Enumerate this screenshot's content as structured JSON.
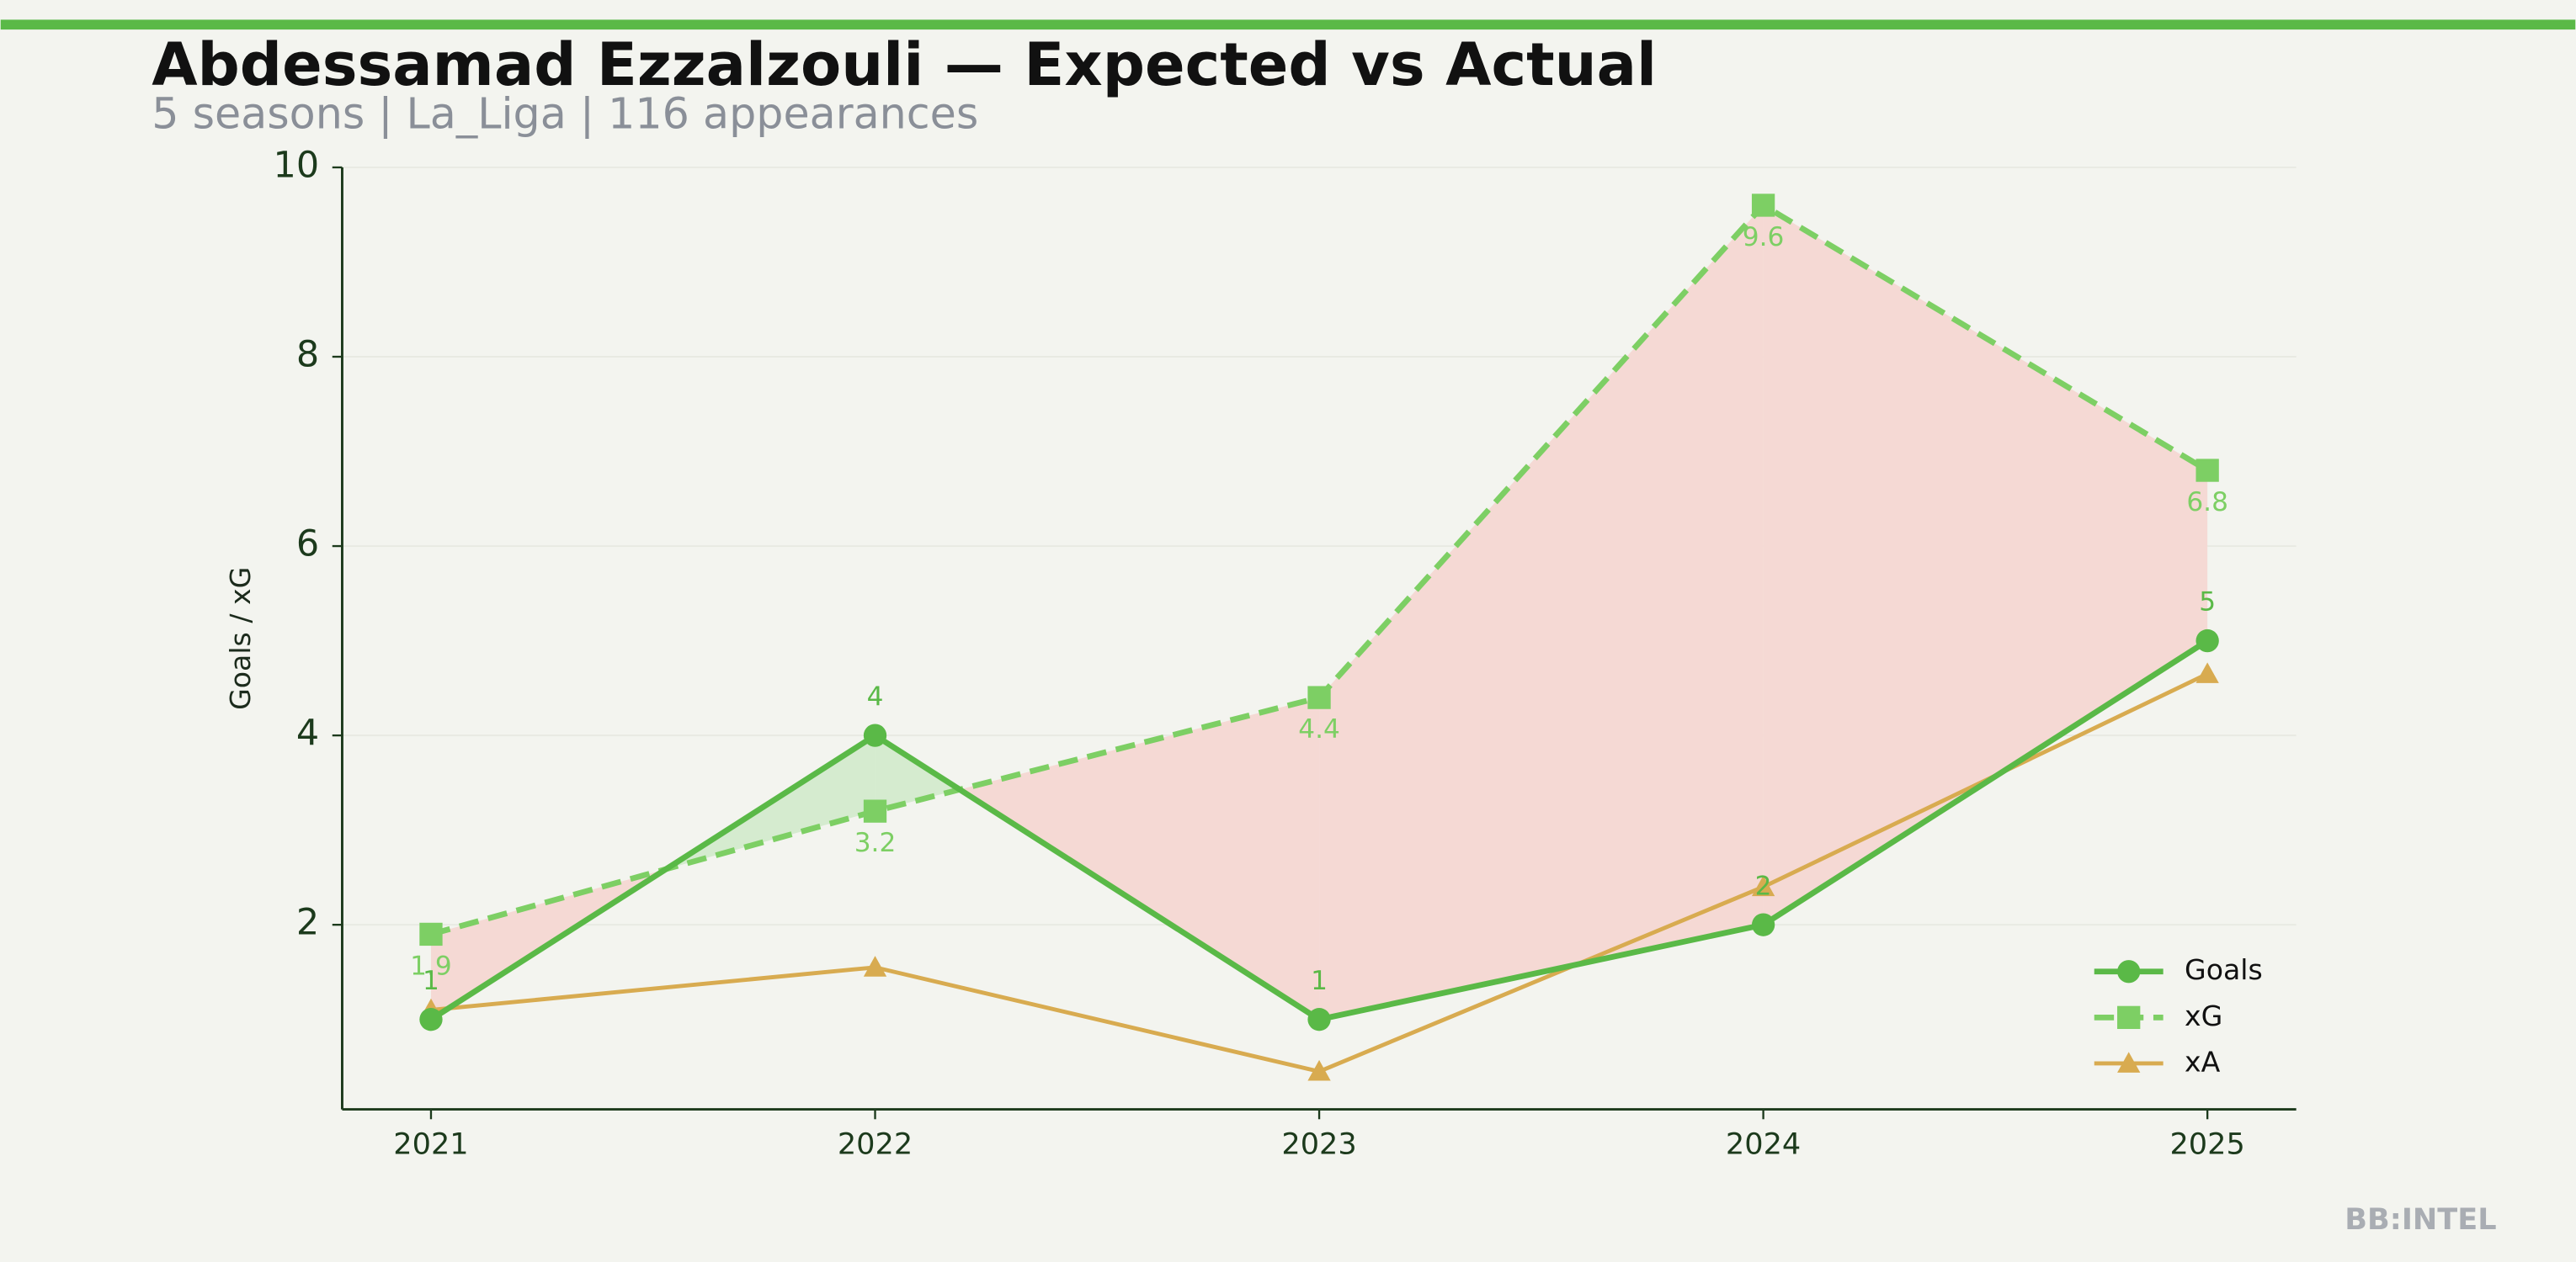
{
  "chart_data": {
    "type": "line",
    "title": "Abdessamad Ezzalzouli — Expected vs Actual",
    "subtitle": "5 seasons | La_Liga | 116 appearances",
    "y_label": "Goals / xG",
    "watermark": "BB:INTEL",
    "x": [
      2021,
      2022,
      2023,
      2024,
      2025
    ],
    "xlim": [
      2020.8,
      2025.2
    ],
    "xticks": [
      2021,
      2022,
      2023,
      2024,
      2025
    ],
    "ylim": [
      0.05,
      10
    ],
    "yticks": [
      2,
      4,
      6,
      8,
      10
    ],
    "legend": "lower right",
    "series": [
      {
        "name": "Goals",
        "color": "#5ab947",
        "marker": "circle",
        "values": [
          1,
          4,
          1,
          2,
          5
        ]
      },
      {
        "name": "xG",
        "color": "#7dcf64",
        "marker": "square",
        "dashed": true,
        "values": [
          1.9,
          3.2,
          4.4,
          9.6,
          6.8
        ]
      },
      {
        "name": "xA",
        "color": "#d8ab50",
        "marker": "triangle",
        "values": [
          1.1,
          1.55,
          0.45,
          2.4,
          4.65
        ]
      }
    ]
  }
}
